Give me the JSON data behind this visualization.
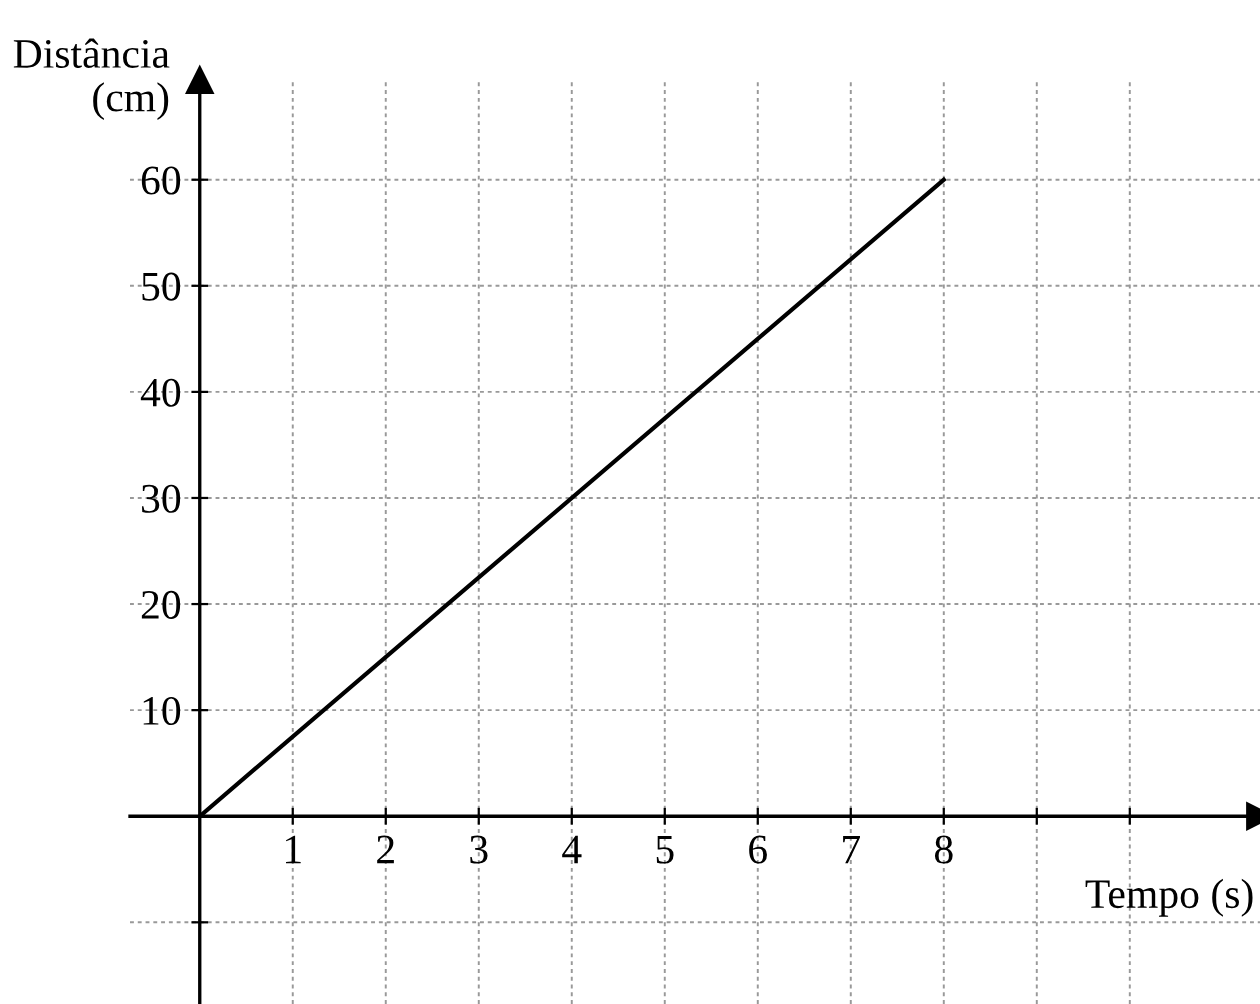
{
  "chart_data": {
    "type": "line",
    "xlabel": "Tempo (s)",
    "ylabel": "Distância\n(cm)",
    "series": [
      {
        "color": "#000000",
        "x": [
          0,
          8
        ],
        "values": [
          0,
          60
        ]
      }
    ],
    "xlim": [
      -0.75,
      11.4
    ],
    "ylim": [
      -17.7,
      69.4
    ],
    "xticks": [
      1,
      2,
      3,
      4,
      5,
      6,
      7,
      8,
      {
        "value": 9,
        "label": null
      },
      {
        "value": 10,
        "label": null
      }
    ],
    "yticks": [
      {
        "value": -10,
        "label": null
      },
      10,
      20,
      30,
      40,
      50,
      60
    ],
    "grid": true,
    "marker": "none",
    "line_style": "solid"
  }
}
